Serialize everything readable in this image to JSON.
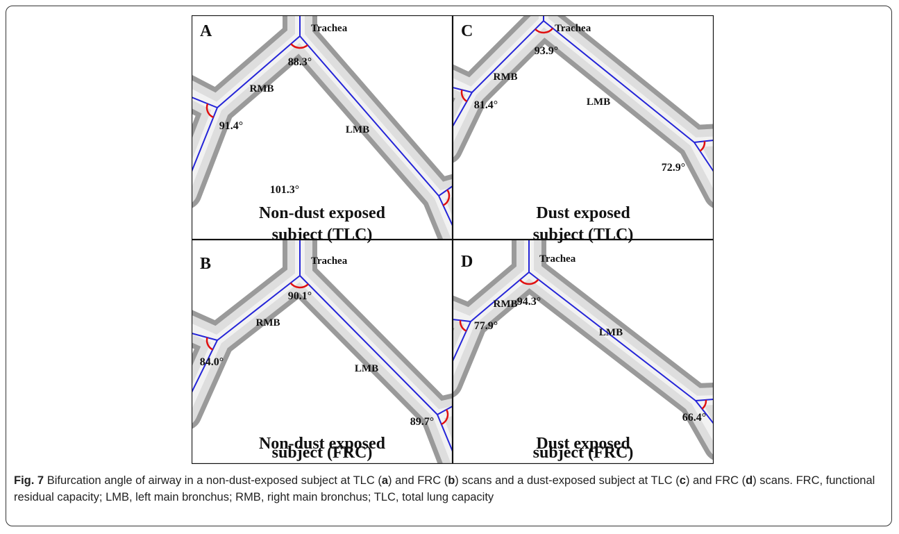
{
  "figure": {
    "panels": [
      {
        "letter": "A",
        "trachea": "Trachea",
        "rmb": "RMB",
        "lmb": "LMB",
        "angles": [
          "88.3°",
          "91.4°",
          "101.3°"
        ],
        "caption": [
          "Non-dust exposed",
          "subject (TLC)"
        ]
      },
      {
        "letter": "C",
        "trachea": "Trachea",
        "rmb": "RMB",
        "lmb": "LMB",
        "angles": [
          "93.9°",
          "81.4°",
          "72.9°"
        ],
        "caption": [
          "Dust exposed",
          "subject (TLC)"
        ]
      },
      {
        "letter": "B",
        "trachea": "Trachea",
        "rmb": "RMB",
        "lmb": "LMB",
        "angles": [
          "90.1°",
          "84.0°",
          "89.7°"
        ],
        "caption": [
          "Non-dust exposed",
          "subject (FRC)"
        ]
      },
      {
        "letter": "D",
        "trachea": "Trachea",
        "rmb": "RMB",
        "lmb": "LMB",
        "angles": [
          "94.3°",
          "77.9°",
          "66.4°"
        ],
        "caption": [
          "Dust exposed",
          "subject (FRC)"
        ]
      }
    ],
    "caption": {
      "label": "Fig. 7",
      "parts": [
        "Bifurcation angle of airway in a non-dust-exposed subject at TLC (",
        "a",
        ") and FRC (",
        "b",
        ") scans and a dust-exposed subject at TLC (",
        "c",
        ") and FRC (",
        "d",
        ") scans. FRC, functional residual capacity; LMB, left main bronchus; RMB, right main bronchus; TLC, total lung capacity"
      ]
    }
  }
}
